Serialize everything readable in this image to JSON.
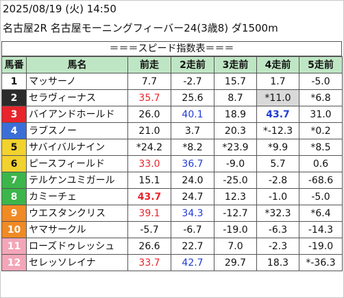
{
  "header": {
    "line1": "2025/08/19 (火) 14:50",
    "line2": "名古屋2R 名古屋モーニングフィーバー24(3歳8) ダ1500m"
  },
  "title": "＝＝＝スピード指数表＝＝＝",
  "columns": [
    "馬番",
    "馬名",
    "前走",
    "2走前",
    "3走前",
    "4走前",
    "5走前"
  ],
  "colors": {
    "header_bg": "#bfe6c4",
    "red": "#e8242c",
    "blue": "#1f3cd6",
    "highlight_bg": "#d9d9d9",
    "gate_colors": [
      "#ffffff",
      "#2b2b2b",
      "#e8242c",
      "#3b6fd8",
      "#f2d22e",
      "#f2d22e",
      "#3cb54a",
      "#3cb54a",
      "#f08a24",
      "#f08a24",
      "#f3a6b8",
      "#f3a6b8"
    ]
  },
  "rows": [
    {
      "num": "1",
      "name": "マッサーノ",
      "vals": [
        "7.7",
        "-2.7",
        "15.7",
        "1.7",
        "-5.0"
      ],
      "styles": [
        "",
        "",
        "",
        "",
        ""
      ]
    },
    {
      "num": "2",
      "name": "セラヴィーナス",
      "vals": [
        "35.7",
        "25.6",
        "8.7",
        "*11.0",
        "*6.8"
      ],
      "styles": [
        "red",
        "",
        "",
        "hl",
        ""
      ]
    },
    {
      "num": "3",
      "name": "バイアンドホールド",
      "vals": [
        "26.0",
        "40.1",
        "18.9",
        "43.7",
        "31.0"
      ],
      "styles": [
        "",
        "blue",
        "",
        "blue bold",
        ""
      ]
    },
    {
      "num": "4",
      "name": "ラブスノー",
      "vals": [
        "21.0",
        "3.7",
        "20.3",
        "*-12.3",
        "*0.2"
      ],
      "styles": [
        "",
        "",
        "",
        "",
        ""
      ]
    },
    {
      "num": "5",
      "name": "サバイバルナイン",
      "vals": [
        "*24.2",
        "*8.2",
        "*23.9",
        "*9.9",
        "*8.5"
      ],
      "styles": [
        "",
        "",
        "",
        "",
        ""
      ]
    },
    {
      "num": "6",
      "name": "ピースフィールド",
      "vals": [
        "33.0",
        "36.7",
        "-9.0",
        "5.7",
        "0.6"
      ],
      "styles": [
        "red",
        "blue",
        "",
        "",
        ""
      ]
    },
    {
      "num": "7",
      "name": "テルケンユミガール",
      "vals": [
        "15.1",
        "24.0",
        "-25.0",
        "-2.8",
        "-68.6"
      ],
      "styles": [
        "",
        "",
        "",
        "",
        ""
      ]
    },
    {
      "num": "8",
      "name": "カミーチェ",
      "vals": [
        "43.7",
        "24.7",
        "12.3",
        "-1.0",
        "-5.0"
      ],
      "styles": [
        "red bold",
        "",
        "",
        "",
        ""
      ]
    },
    {
      "num": "9",
      "name": "ウエスタンクリス",
      "vals": [
        "39.1",
        "34.3",
        "-12.7",
        "*32.3",
        "*6.4"
      ],
      "styles": [
        "red",
        "blue",
        "",
        "",
        ""
      ]
    },
    {
      "num": "10",
      "name": "ヤマサークル",
      "vals": [
        "-5.7",
        "-6.7",
        "-19.0",
        "-6.3",
        "-14.3"
      ],
      "styles": [
        "",
        "",
        "",
        "",
        ""
      ]
    },
    {
      "num": "11",
      "name": "ローズドゥレッシュ",
      "vals": [
        "26.6",
        "22.7",
        "7.0",
        "-2.3",
        "-19.0"
      ],
      "styles": [
        "",
        "",
        "",
        "",
        ""
      ]
    },
    {
      "num": "12",
      "name": "セレッソレイナ",
      "vals": [
        "33.7",
        "42.7",
        "29.7",
        "18.3",
        "*-36.3"
      ],
      "styles": [
        "red",
        "blue",
        "",
        "",
        ""
      ]
    }
  ]
}
